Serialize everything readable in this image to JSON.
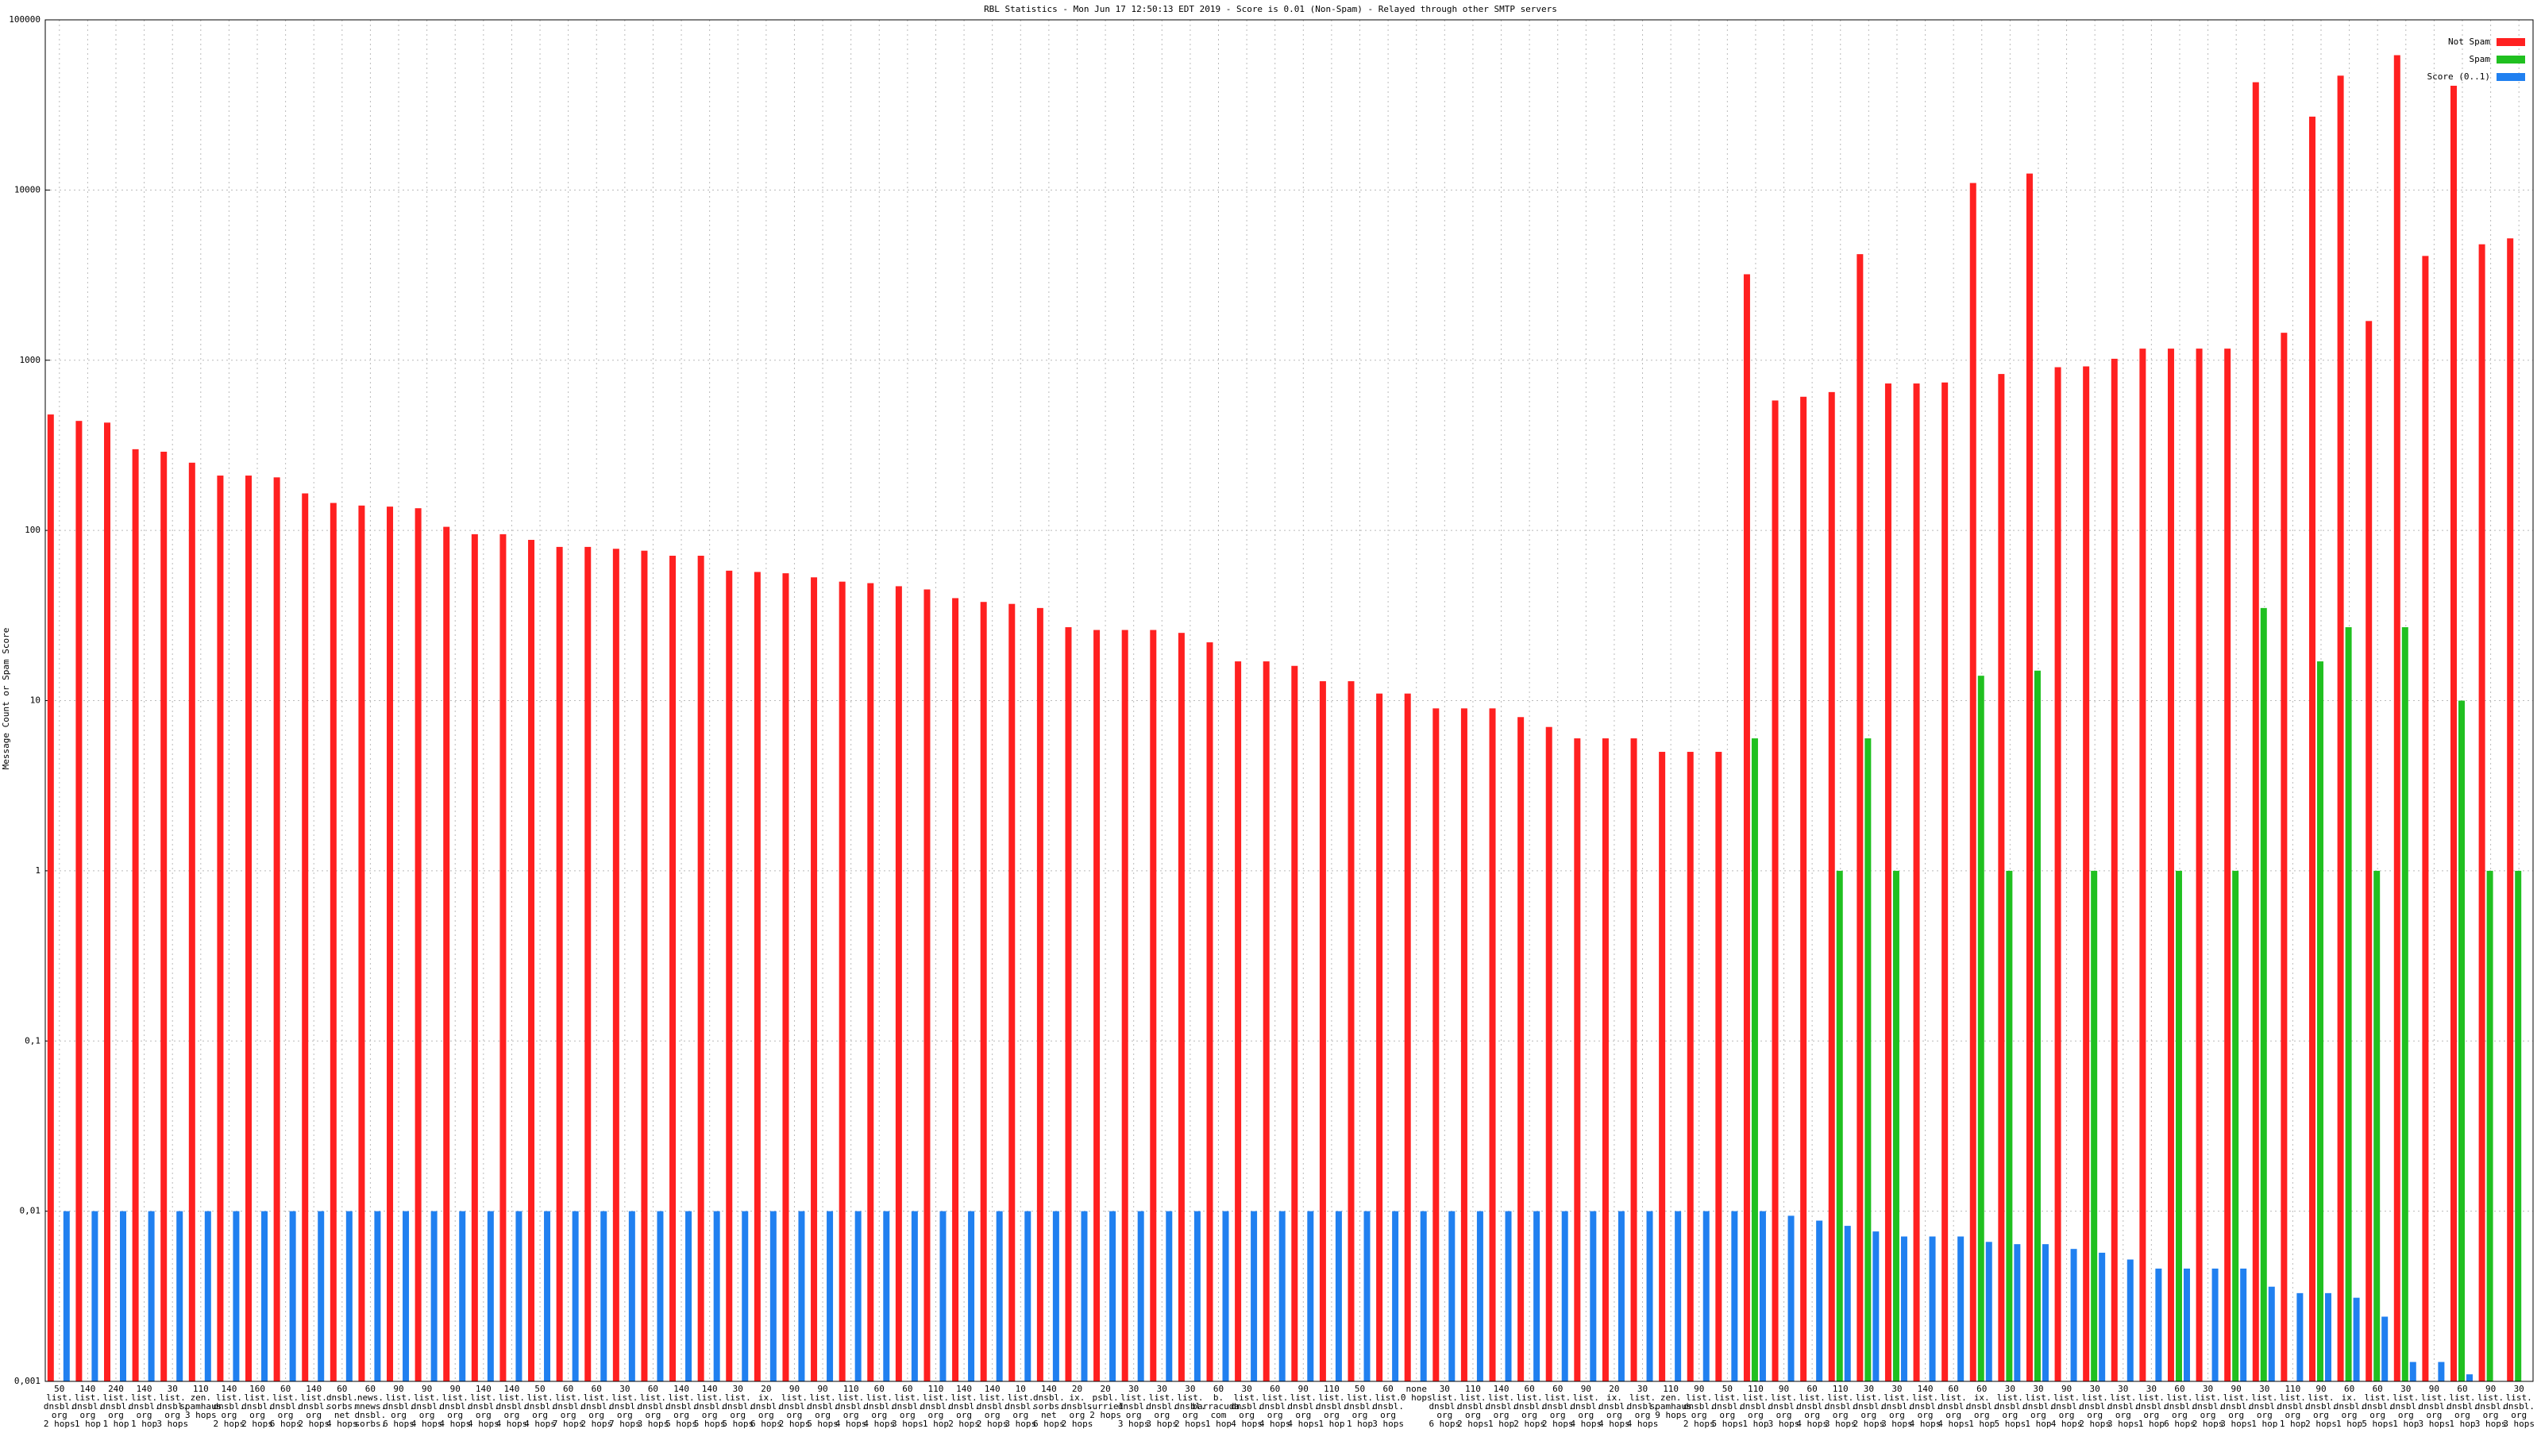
{
  "chart_data": {
    "type": "bar",
    "title": "RBL Statistics - Mon Jun 17 12:50:13 EDT 2019 - Score is 0.01 (Non-Spam) - Relayed through other SMTP servers",
    "y_label": "Message Count or Spam Score",
    "log_scale": true,
    "grid": true,
    "legend": "top-right",
    "ylim": [
      0.001,
      100000
    ],
    "yticks": [
      {
        "value": 0.001,
        "label": "0,001"
      },
      {
        "value": 0.01,
        "label": "0,01"
      },
      {
        "value": 0.1,
        "label": "0,1"
      },
      1,
      10,
      100,
      1000,
      10000,
      100000
    ],
    "categories": [
      "50 list. dnsbl. org 2 hops",
      "140 list. dnsbl. org 1 hop",
      "240 list. dnsbl. org 1 hop",
      "140 list. dnsbl. org 1 hop",
      "30 list. dnsbl. org 3 hops",
      "110 zen. spamhaus 3 hops",
      "140 list. dnsbl. org 2 hops",
      "160 list. dnsbl. org 2 hops",
      "60 list. dnsbl. org 6 hops",
      "140 list. dnsbl. org 2 hops",
      "60 dnsbl. sorbs. net 4 hops",
      "60 news. mnews. dnsbl. sorbs. net 4 hops",
      "90 list. dnsbl. org 6 hops",
      "90 list. dnsbl. org 4 hops",
      "90 list. dnsbl. org 4 hops",
      "140 list. dnsbl. org 4 hops",
      "140 list. dnsbl. org 4 hops",
      "50 list. dnsbl. org 4 hops",
      "60 list. dnsbl. org 7 hops",
      "60 list. dnsbl. org 2 hops",
      "30 list. dnsbl. org 7 hops",
      "60 list. dnsbl. org 3 hops",
      "140 list. dnsbl. org 5 hops",
      "140 list. dnsbl. org 5 hops",
      "30 list. dnsbl. org 5 hops",
      "20 ix. dnsbl. org 6 hops",
      "90 list. dnsbl. org 2 hops",
      "90 list. dnsbl. org 5 hops",
      "110 list. dnsbl. org 4 hops",
      "60 list. dnsbl. org 4 hops",
      "60 list. dnsbl. org 3 hops",
      "110 list. dnsbl. org 1 hop",
      "140 list. dnsbl. org 2 hops",
      "140 list. dnsbl. org 2 hops",
      "10 list. dnsbl. org 3 hops",
      "140 dnsbl. sorbs. net 6 hops",
      "20 ix. dnsbl. org 2 hops",
      "20 psbl. surriel 2 hops",
      "30 list. dnsbl. org 3 hops",
      "30 list. dnsbl. org 3 hops",
      "30 list. dnsbl. org 2 hops",
      "60 b. barracuda. com 1 hop",
      "30 list. dnsbl. org 4 hops",
      "60 list. dnsbl. org 4 hops",
      "90 list. dnsbl. org 4 hops",
      "110 list. dnsbl. org 1 hop",
      "50 list. dnsbl. org 1 hop",
      "60 list. dnsbl. org 3 hops",
      "none 0 hops",
      "30 list. dnsbl. org 6 hops",
      "110 list. dnsbl. org 2 hops",
      "140 list. dnsbl. org 1 hop",
      "60 list. dnsbl. org 2 hops",
      "60 list. dnsbl. org 2 hops",
      "90 list. dnsbl. org 4 hops",
      "20 ix. dnsbl. org 4 hops",
      "30 list. dnsbl. org 4 hops",
      "110 zen. spamhaus 9 hops",
      "90 list. dnsbl. org 2 hops",
      "50 list. dnsbl. org 5 hops",
      "110 list. dnsbl. org 1 hop",
      "90 list. dnsbl. org 3 hops",
      "60 list. dnsbl. org 4 hops",
      "110 list. dnsbl. org 3 hops",
      "30 list. dnsbl. org 2 hops",
      "30 list. dnsbl. org 3 hops",
      "140 list. dnsbl. org 4 hops",
      "60 list. dnsbl. org 4 hops",
      "60 ix. dnsbl. org 1 hop",
      "30 list. dnsbl. org 5 hops",
      "30 list. dnsbl. org 1 hop",
      "90 list. dnsbl. org 4 hops",
      "30 list. dnsbl. org 2 hops",
      "30 list. dnsbl. org 3 hops",
      "30 list. dnsbl. org 1 hop",
      "60 list. dnsbl. org 6 hops",
      "30 list. dnsbl. org 2 hops",
      "90 list. dnsbl. org 3 hops",
      "30 list. dnsbl. org 1 hop",
      "110 list. dnsbl. org 1 hop",
      "90 list. dnsbl. org 2 hops",
      "60 ix. dnsbl. org 1 hop",
      "60 list. dnsbl. org 5 hops",
      "30 list. dnsbl. org 1 hop",
      "90 list. dnsbl. org 3 hops",
      "60 list. dnsbl. org 1 hop",
      "90 list. dnsbl. org 3 hops",
      "30 list. dnsbl. org 3 hops"
    ],
    "series": [
      {
        "name": "Not Spam",
        "color": "#ff2020",
        "values": [
          480,
          440,
          430,
          300,
          290,
          250,
          210,
          210,
          205,
          165,
          145,
          140,
          138,
          135,
          105,
          95,
          95,
          88,
          80,
          80,
          78,
          76,
          71,
          71,
          58,
          57,
          56,
          53,
          50,
          49,
          47,
          45,
          40,
          38,
          37,
          35,
          27,
          26,
          26,
          26,
          25,
          22,
          17,
          17,
          16,
          13,
          13,
          11,
          11,
          9,
          9,
          9,
          8,
          7,
          6,
          6,
          6,
          5,
          5,
          5,
          3200,
          580,
          610,
          650,
          4200,
          730,
          730,
          740,
          11000,
          830,
          12500,
          910,
          920,
          1020,
          1170,
          1170,
          1170,
          1170,
          43000,
          1450,
          27000,
          47000,
          1700,
          62000,
          4100,
          41000,
          4800,
          5200
        ]
      },
      {
        "name": "Spam",
        "color": "#20c020",
        "values": [
          null,
          null,
          null,
          null,
          null,
          null,
          null,
          null,
          null,
          null,
          null,
          null,
          null,
          null,
          null,
          null,
          null,
          null,
          null,
          null,
          null,
          null,
          null,
          null,
          null,
          null,
          null,
          null,
          null,
          null,
          null,
          null,
          null,
          null,
          null,
          null,
          null,
          null,
          null,
          null,
          null,
          null,
          null,
          null,
          null,
          null,
          null,
          null,
          null,
          null,
          null,
          null,
          null,
          null,
          null,
          null,
          null,
          null,
          null,
          null,
          6,
          null,
          null,
          1,
          6,
          1,
          null,
          null,
          14,
          1,
          15,
          null,
          1,
          null,
          null,
          1,
          null,
          1,
          35,
          null,
          17,
          27,
          1,
          27,
          null,
          10,
          1,
          1
        ]
      },
      {
        "name": "Score (0..1)",
        "color": "#2080f0",
        "values": [
          0.01,
          0.01,
          0.01,
          0.01,
          0.01,
          0.01,
          0.01,
          0.01,
          0.01,
          0.01,
          0.01,
          0.01,
          0.01,
          0.01,
          0.01,
          0.01,
          0.01,
          0.01,
          0.01,
          0.01,
          0.01,
          0.01,
          0.01,
          0.01,
          0.01,
          0.01,
          0.01,
          0.01,
          0.01,
          0.01,
          0.01,
          0.01,
          0.01,
          0.01,
          0.01,
          0.01,
          0.01,
          0.01,
          0.01,
          0.01,
          0.01,
          0.01,
          0.01,
          0.01,
          0.01,
          0.01,
          0.01,
          0.01,
          0.01,
          0.01,
          0.01,
          0.01,
          0.01,
          0.01,
          0.01,
          0.01,
          0.01,
          0.01,
          0.01,
          0.01,
          0.01,
          0.0094,
          0.0088,
          0.0082,
          0.0076,
          0.0071,
          0.0071,
          0.0071,
          0.0066,
          0.0064,
          0.0064,
          0.006,
          0.0057,
          0.0052,
          0.0046,
          0.0046,
          0.0046,
          0.0046,
          0.0036,
          0.0033,
          0.0033,
          0.0031,
          0.0024,
          0.0013,
          0.0013,
          0.0011,
          null,
          null
        ]
      }
    ]
  }
}
